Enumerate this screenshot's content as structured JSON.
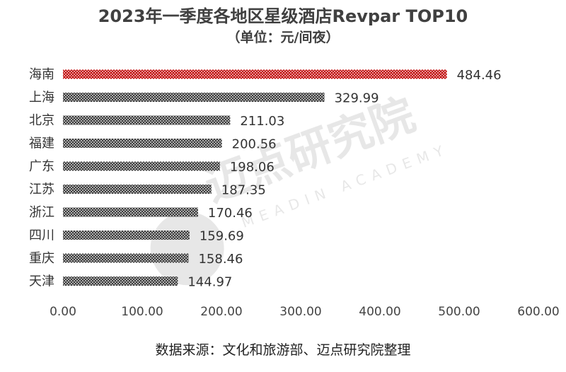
{
  "title": "2023年一季度各地区星级酒店Revpar TOP10",
  "subtitle": "（单位：元/间夜）",
  "source": "数据来源：文化和旅游部、迈点研究院整理",
  "watermark": {
    "text_cn": "迈点研究院",
    "text_en": "MEADIN ACADEMY"
  },
  "colors": {
    "highlight": "#c00000",
    "bar": "#3a3a3a",
    "axis_text": "#444444"
  },
  "chart_data": {
    "type": "bar",
    "orientation": "horizontal",
    "title": "2023年一季度各地区星级酒店Revpar TOP10",
    "subtitle": "（单位：元/间夜）",
    "categories": [
      "海南",
      "上海",
      "北京",
      "福建",
      "广东",
      "江苏",
      "浙江",
      "四川",
      "重庆",
      "天津"
    ],
    "values": [
      484.46,
      329.99,
      211.03,
      200.56,
      198.06,
      187.35,
      170.46,
      159.69,
      158.46,
      144.97
    ],
    "value_labels": [
      "484.46",
      "329.99",
      "211.03",
      "200.56",
      "198.06",
      "187.35",
      "170.46",
      "159.69",
      "158.46",
      "144.97"
    ],
    "xlim": [
      0,
      600
    ],
    "xticks": [
      0,
      100,
      200,
      300,
      400,
      500,
      600
    ],
    "xtick_labels": [
      "0.00",
      "100.00",
      "200.00",
      "300.00",
      "400.00",
      "500.00",
      "600.00"
    ],
    "highlight_index": 0,
    "grid": false,
    "legend": "none"
  }
}
